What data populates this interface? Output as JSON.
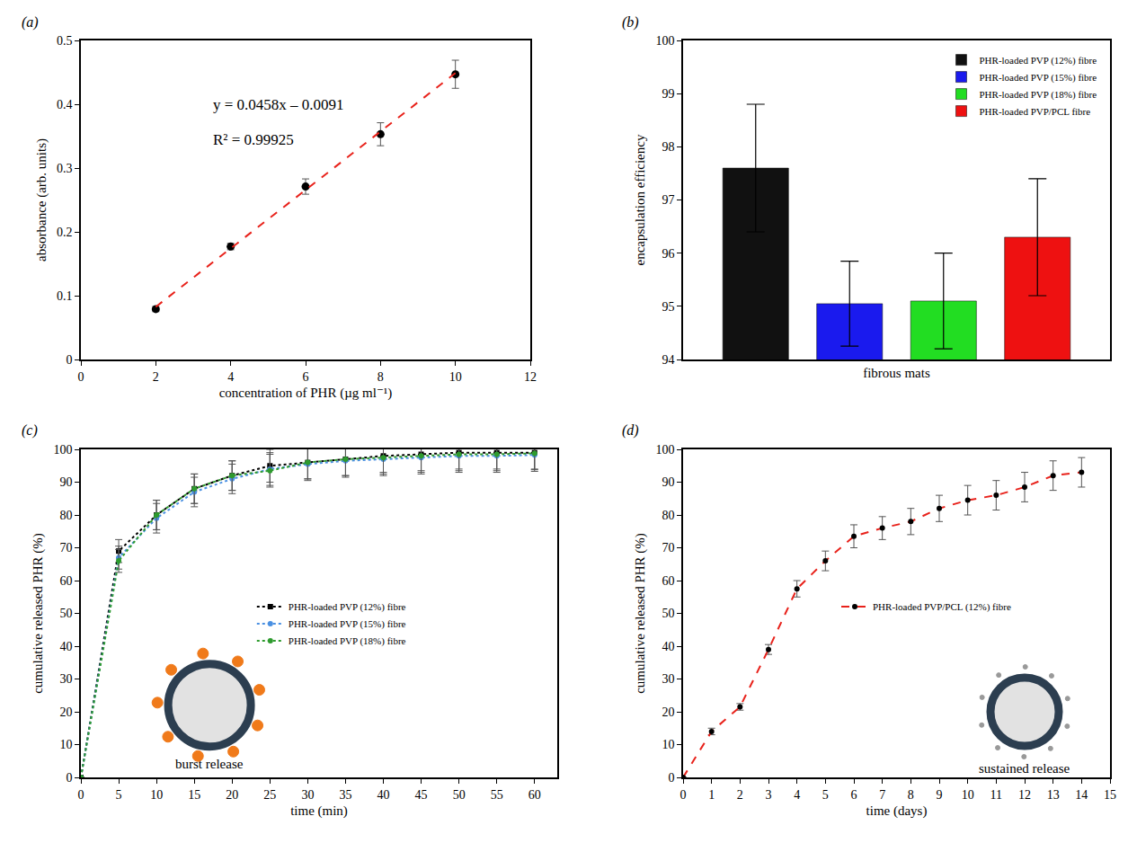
{
  "chart_data": [
    {
      "type": "scatter",
      "title": "(a)",
      "x_label": "concentration of PHR (µg ml⁻¹)",
      "y_label": "absorbance (arb. units)",
      "xlim": [
        0,
        12
      ],
      "xticks": [
        0,
        2,
        4,
        6,
        8,
        10,
        12
      ],
      "ylim": [
        0,
        0.5
      ],
      "yticks": [
        0,
        0.1,
        0.2,
        0.3,
        0.4,
        0.5
      ],
      "annotations": [
        "y = 0.0458x – 0.0091",
        "R² = 0.99925"
      ],
      "series": [
        {
          "type": "scatter",
          "x": [
            2,
            4,
            6,
            8,
            10
          ],
          "values": [
            0.079,
            0.177,
            0.271,
            0.353,
            0.447
          ],
          "errors": [
            0.004,
            0.005,
            0.012,
            0.018,
            0.022
          ],
          "color": "#000000",
          "marker": "circle"
        },
        {
          "type": "line",
          "x": [
            2,
            10
          ],
          "values": [
            0.0825,
            0.4489
          ],
          "color": "#e8221b",
          "line_style": "dash"
        }
      ]
    },
    {
      "type": "bar",
      "title": "(b)",
      "x_label": "fibrous mats",
      "y_label": "encapsulation efficiency",
      "categories": [
        null
      ],
      "ylim": [
        94,
        100
      ],
      "yticks": [
        94,
        95,
        96,
        97,
        98,
        99,
        100
      ],
      "legend": "upper right",
      "series": [
        {
          "name": "PHR-loaded PVP (12%) fibre",
          "color": "#111111",
          "values": [
            97.6
          ],
          "errors": [
            1.2
          ]
        },
        {
          "name": "PHR-loaded PVP (15%) fibre",
          "color": "#1a1aee",
          "values": [
            95.05
          ],
          "errors": [
            0.8
          ]
        },
        {
          "name": "PHR-loaded PVP (18%) fibre",
          "color": "#22dd22",
          "values": [
            95.1
          ],
          "errors": [
            0.9
          ]
        },
        {
          "name": "PHR-loaded PVP/PCL fibre",
          "color": "#ee1111",
          "values": [
            96.3
          ],
          "errors": [
            1.1
          ]
        }
      ]
    },
    {
      "type": "line",
      "title": "(c)",
      "x_label": "time (min)",
      "y_label": "cumulative released PHR (%)",
      "x": [
        0,
        5,
        10,
        15,
        20,
        25,
        30,
        35,
        40,
        45,
        50,
        55,
        60
      ],
      "xlim": [
        0,
        63
      ],
      "xticks": [
        0,
        5,
        10,
        15,
        20,
        25,
        30,
        35,
        40,
        45,
        50,
        55,
        60
      ],
      "ylim": [
        0,
        100
      ],
      "yticks": [
        0,
        10,
        20,
        30,
        40,
        50,
        60,
        70,
        80,
        90,
        100
      ],
      "legend": "center",
      "annotations": [
        "burst release"
      ],
      "series": [
        {
          "name": "PHR-loaded PVP (12%) fibre",
          "color": "#000000",
          "marker": "square",
          "line_style": "dot",
          "values": [
            0,
            69,
            80,
            88,
            92,
            95,
            96,
            97,
            98,
            98.5,
            99,
            99,
            99
          ],
          "errors": [
            0,
            3.5,
            4.5,
            4.5,
            4.5,
            5,
            5,
            5,
            5,
            5,
            5,
            5,
            5
          ]
        },
        {
          "name": "PHR-loaded PVP (15%) fibre",
          "color": "#4a90e2",
          "marker": "circle",
          "line_style": "dot",
          "values": [
            0,
            67,
            79,
            87,
            91,
            94,
            95.5,
            96.5,
            97,
            97.5,
            98,
            98,
            98.3
          ],
          "errors": [
            0,
            3.5,
            4.5,
            4.5,
            4.5,
            5,
            5,
            5,
            5,
            5,
            5,
            5,
            5
          ]
        },
        {
          "name": "PHR-loaded PVP (18%) fibre",
          "color": "#2e9b2e",
          "marker": "circle",
          "line_style": "dot",
          "values": [
            0,
            66,
            80,
            88,
            92,
            93.5,
            96,
            97,
            97.5,
            98,
            98.5,
            98.5,
            98.8
          ],
          "errors": [
            0,
            3.5,
            4.5,
            4.5,
            4.5,
            5,
            5,
            5,
            5,
            5,
            5,
            5,
            5
          ]
        }
      ]
    },
    {
      "type": "line",
      "title": "(d)",
      "x_label": "time (days)",
      "y_label": "cumulative released PHR (%)",
      "x": [
        0,
        1,
        2,
        3,
        4,
        5,
        6,
        7,
        8,
        9,
        10,
        11,
        12,
        13,
        14
      ],
      "xlim": [
        0,
        15
      ],
      "xticks": [
        0,
        1,
        2,
        3,
        4,
        5,
        6,
        7,
        8,
        9,
        10,
        11,
        12,
        13,
        14,
        15
      ],
      "ylim": [
        0,
        100
      ],
      "yticks": [
        0,
        10,
        20,
        30,
        40,
        50,
        60,
        70,
        80,
        90,
        100
      ],
      "legend": "center",
      "annotations": [
        "sustained release"
      ],
      "series": [
        {
          "name": "PHR-loaded PVP/PCL (12%) fibre",
          "color": "#e8221b",
          "marker": "circle",
          "line_style": "dash",
          "values": [
            0,
            14,
            21.5,
            39,
            57.5,
            66,
            73.5,
            76,
            78,
            82,
            84.5,
            86,
            88.5,
            92,
            93
          ],
          "errors": [
            0,
            1,
            1,
            1.5,
            2.5,
            3,
            3.5,
            3.5,
            4,
            4,
            4.5,
            4.5,
            4.5,
            4.5,
            4.5
          ]
        }
      ]
    }
  ]
}
